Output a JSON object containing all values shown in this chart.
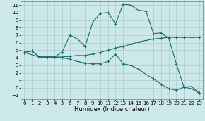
{
  "xlabel": "Humidex (Indice chaleur)",
  "bg_color": "#cce8e8",
  "grid_color": "#aacccc",
  "line_color": "#1a6b6b",
  "xlim": [
    -0.5,
    23.5
  ],
  "ylim": [
    -1.5,
    11.5
  ],
  "xticks": [
    0,
    1,
    2,
    3,
    4,
    5,
    6,
    7,
    8,
    9,
    10,
    11,
    12,
    13,
    14,
    15,
    16,
    17,
    18,
    19,
    20,
    21,
    22,
    23
  ],
  "yticks": [
    -1,
    0,
    1,
    2,
    3,
    4,
    5,
    6,
    7,
    8,
    9,
    10,
    11
  ],
  "line1_x": [
    0,
    1,
    2,
    3,
    4,
    5,
    6,
    7,
    8,
    9,
    10,
    11,
    12,
    13,
    14,
    15,
    16,
    17,
    18,
    19,
    20,
    21,
    22,
    23
  ],
  "line1_y": [
    4.7,
    4.9,
    4.1,
    4.1,
    4.1,
    4.1,
    4.2,
    4.3,
    4.3,
    4.5,
    4.7,
    5.0,
    5.3,
    5.5,
    5.8,
    6.1,
    6.3,
    6.5,
    6.6,
    6.7,
    6.7,
    6.7,
    6.7,
    6.7
  ],
  "line2_x": [
    0,
    1,
    2,
    3,
    4,
    5,
    6,
    7,
    8,
    9,
    10,
    11,
    12,
    13,
    14,
    15,
    16,
    17,
    18,
    19,
    20,
    21,
    22,
    23
  ],
  "line2_y": [
    4.7,
    4.9,
    4.1,
    4.1,
    4.1,
    4.0,
    3.8,
    3.5,
    3.3,
    3.2,
    3.2,
    3.5,
    4.5,
    3.2,
    3.0,
    2.5,
    1.8,
    1.2,
    0.5,
    -0.1,
    -0.3,
    0.1,
    -0.1,
    -0.7
  ],
  "line3_x": [
    0,
    2,
    3,
    4,
    5,
    6,
    7,
    8,
    9,
    10,
    11,
    12,
    13,
    14,
    15,
    16,
    17,
    18,
    19,
    20,
    21,
    22,
    23
  ],
  "line3_y": [
    4.7,
    4.1,
    4.1,
    4.1,
    4.8,
    7.0,
    6.5,
    5.5,
    8.7,
    9.9,
    10.0,
    8.5,
    11.1,
    11.0,
    10.3,
    10.2,
    7.2,
    7.3,
    6.6,
    3.2,
    0.1,
    0.2,
    -0.7
  ],
  "xlabel_fontsize": 6,
  "tick_fontsize": 5,
  "linewidth": 0.8,
  "markersize": 2.5
}
